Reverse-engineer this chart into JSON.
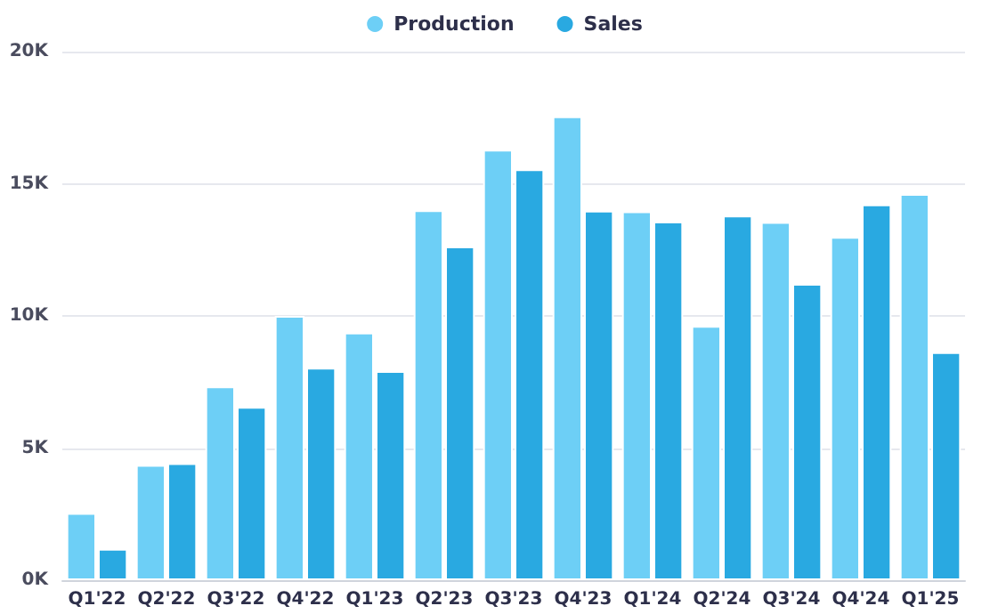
{
  "chart_data": {
    "type": "bar",
    "categories": [
      "Q1'22",
      "Q2'22",
      "Q3'22",
      "Q4'22",
      "Q1'23",
      "Q2'23",
      "Q3'23",
      "Q4'23",
      "Q1'24",
      "Q2'24",
      "Q3'24",
      "Q4'24",
      "Q1'25"
    ],
    "series": [
      {
        "name": "Production",
        "color": "#6dcff6",
        "values": [
          2.54,
          4.36,
          7.33,
          10.0,
          9.37,
          14.0,
          16.29,
          17.55,
          13.96,
          9.62,
          13.55,
          12.99,
          14.61
        ]
      },
      {
        "name": "Sales",
        "color": "#29a9e1",
        "values": [
          1.19,
          4.43,
          6.56,
          8.04,
          7.91,
          12.63,
          15.55,
          13.98,
          13.57,
          13.8,
          11.21,
          14.22,
          8.63
        ]
      }
    ],
    "ylim": [
      0,
      20
    ],
    "yticks": [
      {
        "value": 0,
        "label": "0K"
      },
      {
        "value": 5,
        "label": "5K"
      },
      {
        "value": 10,
        "label": "10K"
      },
      {
        "value": 15,
        "label": "15K"
      },
      {
        "value": 20,
        "label": "20K"
      }
    ],
    "grid": "y",
    "legend": "top"
  }
}
